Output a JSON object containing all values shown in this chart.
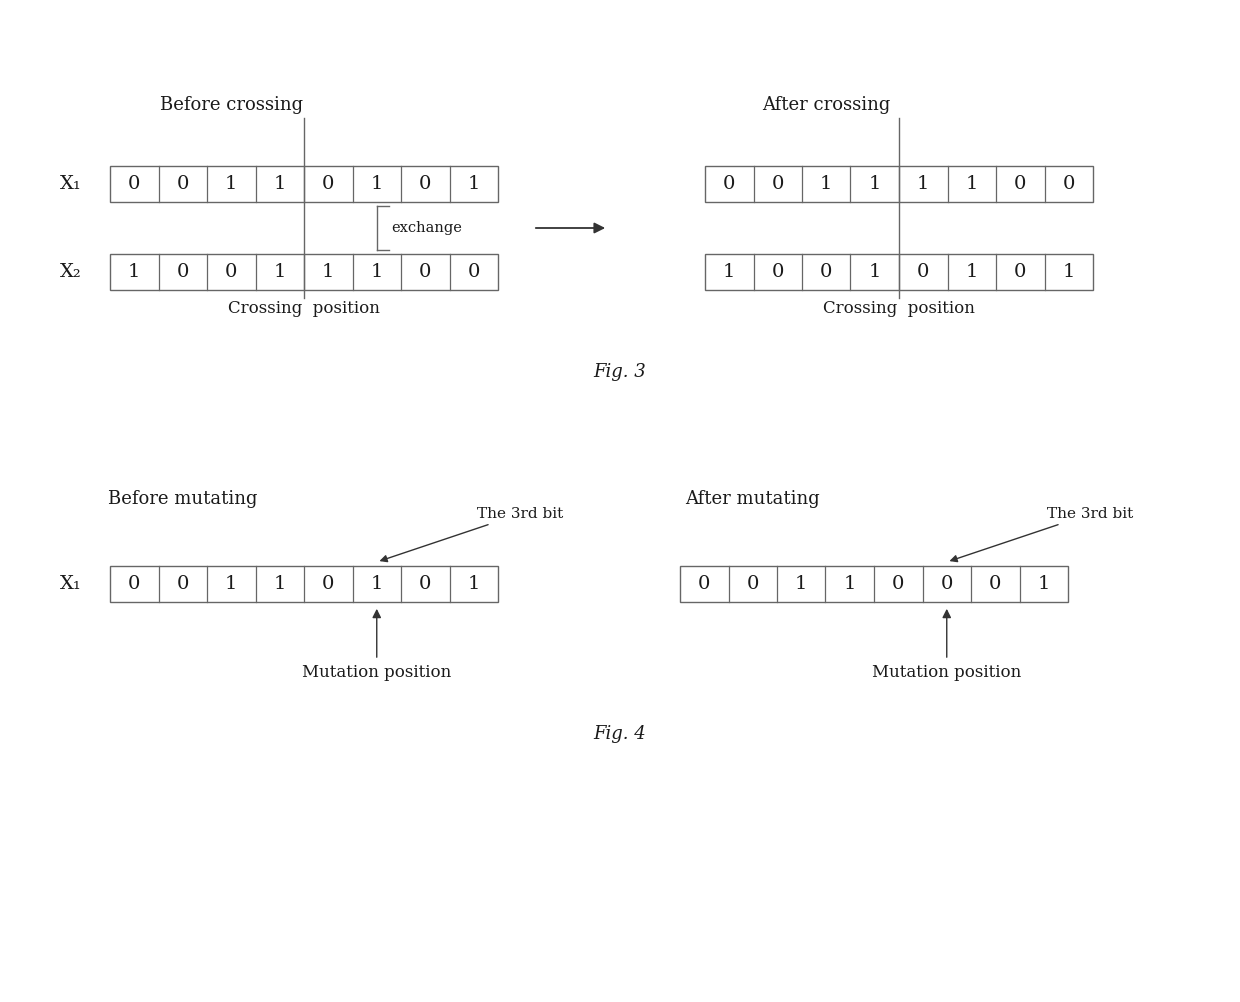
{
  "fig3": {
    "title": "Fig. 3",
    "left": {
      "title": "Before crossing",
      "x1_label": "X₁",
      "x1_values": [
        "0",
        "0",
        "1",
        "1",
        "0",
        "1",
        "0",
        "1"
      ],
      "x2_label": "X₂",
      "x2_values": [
        "1",
        "0",
        "0",
        "1",
        "1",
        "1",
        "0",
        "0"
      ],
      "crossing_pos_label": "Crossing  position",
      "crossing_col": 4
    },
    "right": {
      "title": "After crossing",
      "x1_values": [
        "0",
        "0",
        "1",
        "1",
        "1",
        "1",
        "0",
        "0"
      ],
      "x2_values": [
        "1",
        "0",
        "0",
        "1",
        "0",
        "1",
        "0",
        "1"
      ],
      "crossing_pos_label": "Crossing  position",
      "crossing_col": 4
    },
    "exchange_label": "exchange"
  },
  "fig4": {
    "title": "Fig. 4",
    "left": {
      "title": "Before mutating",
      "x1_label": "X₁",
      "x1_values": [
        "0",
        "0",
        "1",
        "1",
        "0",
        "1",
        "0",
        "1"
      ],
      "mutation_col": 5,
      "mutation_label": "Mutation position",
      "bit_label": "The 3rd bit"
    },
    "right": {
      "title": "After mutating",
      "x1_values": [
        "0",
        "0",
        "1",
        "1",
        "0",
        "0",
        "0",
        "1"
      ],
      "mutation_col": 5,
      "mutation_label": "Mutation position",
      "bit_label": "The 3rd bit"
    }
  },
  "bg_color": "#ffffff",
  "text_color": "#1a1a1a",
  "edge_color": "#666666"
}
